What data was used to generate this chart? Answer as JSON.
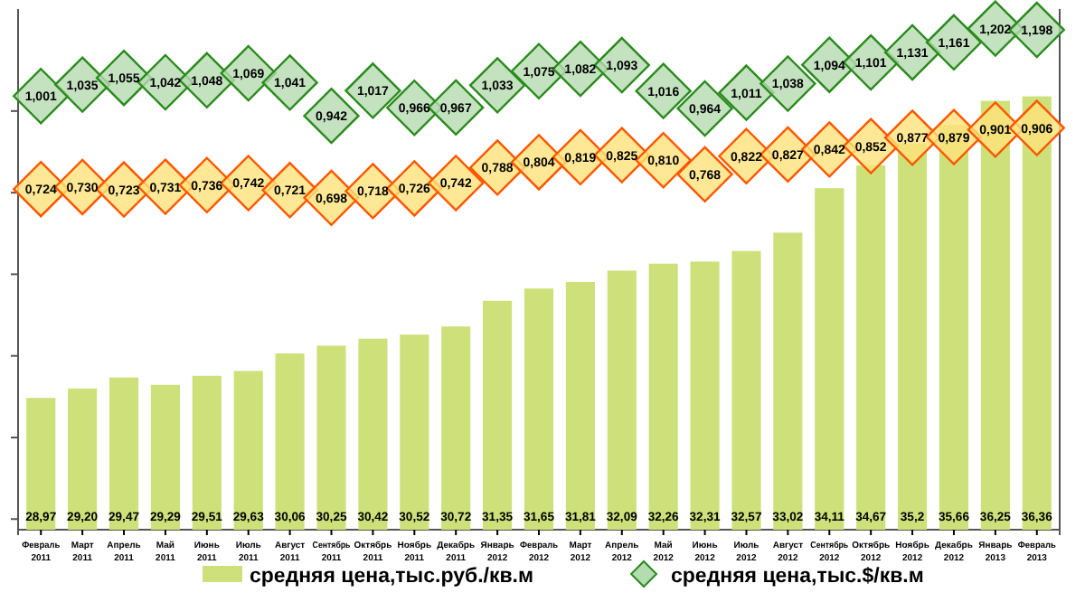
{
  "chart_data": {
    "type": "bar",
    "categories": [
      "Февраль\n2011",
      "Март\n2011",
      "Апрель\n2011",
      "Май\n2011",
      "Июнь\n2011",
      "Июль\n2011",
      "Август\n2011",
      "Сентябрь\n2011",
      "Октябрь\n2011",
      "Ноябрь\n2011",
      "Декабрь\n2011",
      "Январь\n2012",
      "Февраль\n2012",
      "Март\n2012",
      "Апрель\n2012",
      "Май\n2012",
      "Июнь\n2012",
      "Июль\n2012",
      "Август\n2012",
      "Сентябрь\n2012",
      "Октябрь\n2012",
      "Ноябрь\n2012",
      "Декабрь\n2012",
      "Январь\n2013",
      "Февраль\n2013"
    ],
    "ylim": [
      25.74,
      38.5
    ],
    "y2lim": [
      -0.29,
      1.26
    ],
    "yticks": [
      {
        "value": 26,
        "label": null
      },
      {
        "value": 28,
        "label": null
      },
      {
        "value": 30,
        "label": null
      },
      {
        "value": 32,
        "label": null
      },
      {
        "value": 34,
        "label": null
      },
      {
        "value": 36,
        "label": null
      }
    ],
    "legend": "bottom",
    "marker": "diamond",
    "tick_labels": "x",
    "series": [
      {
        "type": "bar",
        "name": "средняя цена,тыс.руб./кв.м",
        "color": "#cde07a",
        "values": [
          28.97,
          29.2,
          29.47,
          29.29,
          29.51,
          29.63,
          30.06,
          30.25,
          30.42,
          30.52,
          30.72,
          31.35,
          31.65,
          31.81,
          32.09,
          32.26,
          32.31,
          32.57,
          33.02,
          34.11,
          34.67,
          35.2,
          35.66,
          36.25,
          36.36
        ],
        "value_labels": [
          "28,97",
          "29,20",
          "29,47",
          "29,29",
          "29,51",
          "29,63",
          "30,06",
          "30,25",
          "30,42",
          "30,52",
          "30,72",
          "31,35",
          "31,65",
          "31,81",
          "32,09",
          "32,26",
          "32,31",
          "32,57",
          "33,02",
          "34,11",
          "34,67",
          "35,2",
          "35,66",
          "36,25",
          "36,36"
        ]
      },
      {
        "type": "scatter",
        "axis": "y2",
        "name": "средняя цена,тыс.$/кв.м",
        "color": "#b5dbb0",
        "values": [
          1.001,
          1.035,
          1.055,
          1.042,
          1.048,
          1.069,
          1.041,
          0.942,
          1.017,
          0.966,
          0.967,
          1.033,
          1.075,
          1.082,
          1.093,
          1.016,
          0.964,
          1.011,
          1.038,
          1.094,
          1.101,
          1.131,
          1.161,
          1.202,
          1.198
        ],
        "value_labels": [
          "1,001",
          "1,035",
          "1,055",
          "1,042",
          "1,048",
          "1,069",
          "1,041",
          "0,942",
          "1,017",
          "0,966",
          "0,967",
          "1,033",
          "1,075",
          "1,082",
          "1,093",
          "1,016",
          "0,964",
          "1,011",
          "1,038",
          "1,094",
          "1,101",
          "1,131",
          "1,161",
          "1,202",
          "1,198"
        ]
      },
      {
        "type": "scatter",
        "axis": "y2",
        "color": "#ffe27a",
        "values": [
          0.724,
          0.73,
          0.723,
          0.731,
          0.736,
          0.742,
          0.721,
          0.698,
          0.718,
          0.726,
          0.742,
          0.788,
          0.804,
          0.819,
          0.825,
          0.81,
          0.768,
          0.822,
          0.827,
          0.842,
          0.852,
          0.877,
          0.879,
          0.901,
          0.906
        ],
        "value_labels": [
          "0,724",
          "0,730",
          "0,723",
          "0,731",
          "0,736",
          "0,742",
          "0,721",
          "0,698",
          "0,718",
          "0,726",
          "0,742",
          "0,788",
          "0,804",
          "0,819",
          "0,825",
          "0,810",
          "0,768",
          "0,822",
          "0,827",
          "0,842",
          "0,852",
          "0,877",
          "0,879",
          "0,901",
          "0,906"
        ]
      }
    ]
  }
}
